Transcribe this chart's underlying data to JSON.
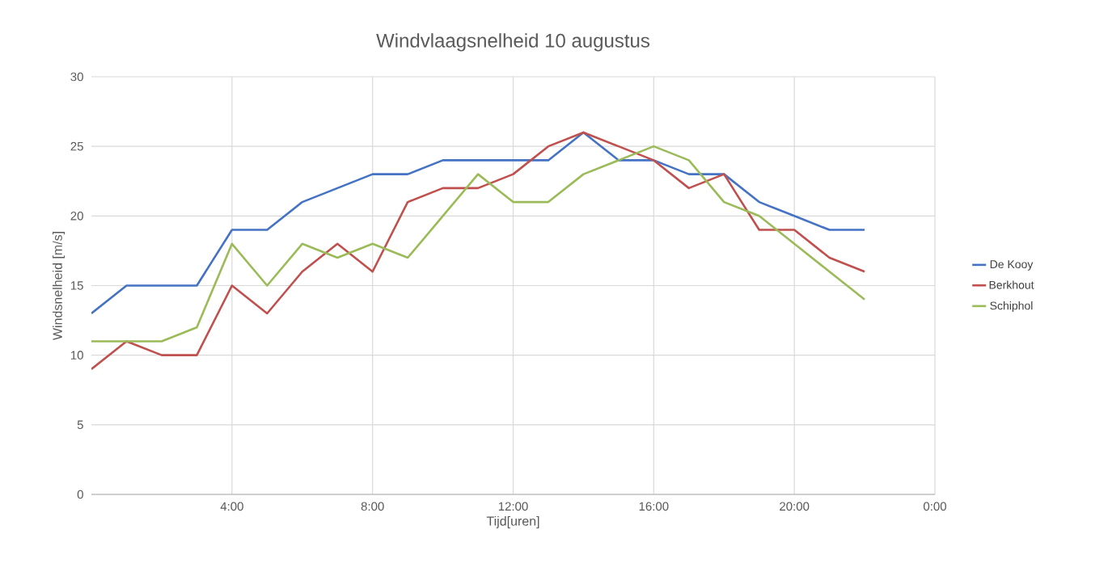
{
  "chart_data": {
    "type": "line",
    "title": "Windvlaagsnelheid 10 augustus",
    "xlabel": "Tijd[uren]",
    "ylabel": "Windsnelheid [m/s]",
    "x": [
      0,
      1,
      2,
      3,
      4,
      5,
      6,
      7,
      8,
      9,
      10,
      11,
      12,
      13,
      14,
      15,
      16,
      17,
      18,
      19,
      20,
      21,
      22
    ],
    "series": [
      {
        "name": "De Kooy",
        "color": "#4472c4",
        "values": [
          13,
          15,
          15,
          15,
          19,
          19,
          21,
          22,
          23,
          23,
          24,
          24,
          24,
          24,
          26,
          24,
          24,
          23,
          23,
          21,
          20,
          19,
          19
        ]
      },
      {
        "name": "Berkhout",
        "color": "#c0504d",
        "values": [
          9,
          11,
          10,
          10,
          15,
          13,
          16,
          18,
          16,
          21,
          22,
          22,
          23,
          25,
          26,
          25,
          24,
          22,
          23,
          19,
          19,
          17,
          16
        ]
      },
      {
        "name": "Schiphol",
        "color": "#9bbb59",
        "values": [
          11,
          11,
          11,
          12,
          18,
          15,
          18,
          17,
          18,
          17,
          20,
          23,
          21,
          21,
          23,
          24,
          25,
          24,
          21,
          20,
          18,
          16,
          14
        ]
      }
    ],
    "xlim": [
      0,
      24
    ],
    "xticks": [
      {
        "value": 4,
        "label": "4:00"
      },
      {
        "value": 8,
        "label": "8:00"
      },
      {
        "value": 12,
        "label": "12:00"
      },
      {
        "value": 16,
        "label": "16:00"
      },
      {
        "value": 20,
        "label": "20:00"
      },
      {
        "value": 24,
        "label": "0:00"
      }
    ],
    "ylim": [
      0,
      30
    ],
    "yticks": [
      0,
      5,
      10,
      15,
      20,
      25,
      30
    ],
    "grid": true,
    "legend": "right",
    "marker": "none",
    "line_style": "solid"
  }
}
